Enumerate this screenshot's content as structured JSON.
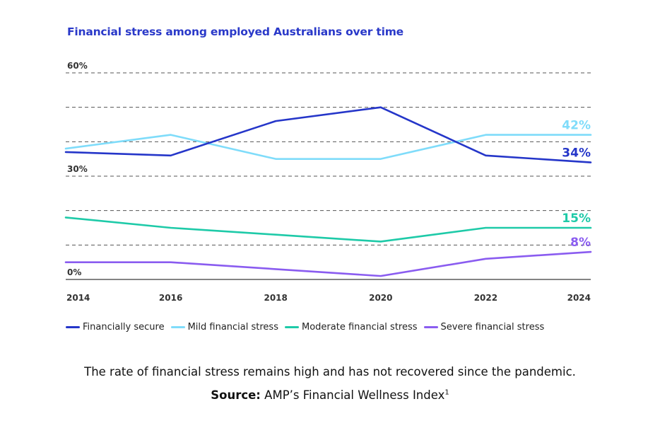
{
  "chart_data": {
    "type": "line",
    "title": "Financial stress among employed Australians over time",
    "x": [
      "2014",
      "2016",
      "2018",
      "2020",
      "2022",
      "2024"
    ],
    "ylim": [
      0,
      60
    ],
    "yticks": [
      "60%",
      "30%",
      "0%"
    ],
    "ytick_values": [
      60,
      30,
      0
    ],
    "grid_values": [
      60,
      50,
      40,
      30,
      20,
      10
    ],
    "grid": "dashed horizontal",
    "legend_position": "bottom",
    "series": [
      {
        "name": "Financially secure",
        "color": "#2536c9",
        "values": [
          37,
          36,
          46,
          50,
          36,
          34
        ],
        "end_label": "34%"
      },
      {
        "name": "Mild financial stress",
        "color": "#7fdcfa",
        "values": [
          38,
          42,
          35,
          35,
          42,
          42
        ],
        "end_label": "42%"
      },
      {
        "name": "Moderate financial stress",
        "color": "#1ecaa8",
        "values": [
          18,
          15,
          13,
          11,
          15,
          15
        ],
        "end_label": "15%"
      },
      {
        "name": "Severe financial stress",
        "color": "#8a5cf0",
        "values": [
          5,
          5,
          3,
          1,
          6,
          8
        ],
        "end_label": "8%"
      }
    ]
  },
  "caption": "The rate of financial stress remains high and has not recovered since the pandemic.",
  "source": {
    "label": "Source:",
    "text": " AMP’s Financial Wellness Index",
    "footnote": "1"
  }
}
